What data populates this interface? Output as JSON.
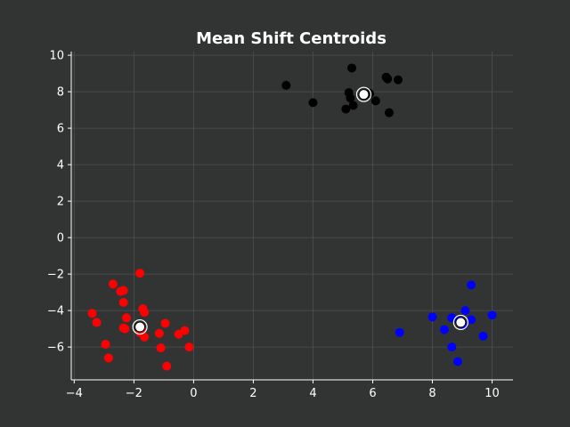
{
  "chart_data": {
    "type": "scatter",
    "title": "Mean Shift Centroids",
    "xlabel": "",
    "ylabel": "",
    "xlim": [
      -4.1,
      10.7
    ],
    "ylim": [
      -7.8,
      10.2
    ],
    "xticks": [
      -4,
      -2,
      0,
      2,
      4,
      6,
      8,
      10
    ],
    "yticks": [
      -6,
      -4,
      -2,
      0,
      2,
      4,
      6,
      8,
      10
    ],
    "grid": true,
    "background_color": "#323434",
    "series": [
      {
        "color": "#000000",
        "points": [
          [
            5.3,
            9.3
          ],
          [
            3.1,
            8.35
          ],
          [
            6.45,
            8.8
          ],
          [
            6.5,
            8.7
          ],
          [
            6.85,
            8.65
          ],
          [
            5.2,
            7.95
          ],
          [
            5.25,
            7.65
          ],
          [
            5.9,
            7.9
          ],
          [
            6.1,
            7.5
          ],
          [
            4.0,
            7.4
          ],
          [
            5.35,
            7.25
          ],
          [
            5.1,
            7.05
          ],
          [
            6.55,
            6.85
          ]
        ]
      },
      {
        "color": "#ff0000",
        "points": [
          [
            -1.8,
            -1.95
          ],
          [
            -2.7,
            -2.55
          ],
          [
            -2.45,
            -2.95
          ],
          [
            -2.35,
            -2.9
          ],
          [
            -2.35,
            -3.55
          ],
          [
            -3.4,
            -4.15
          ],
          [
            -1.7,
            -3.9
          ],
          [
            -1.65,
            -4.1
          ],
          [
            -2.25,
            -4.4
          ],
          [
            -3.25,
            -4.65
          ],
          [
            -0.95,
            -4.7
          ],
          [
            -2.3,
            -5.0
          ],
          [
            -2.35,
            -4.95
          ],
          [
            -1.75,
            -5.0
          ],
          [
            -1.8,
            -5.2
          ],
          [
            -1.15,
            -5.25
          ],
          [
            -1.65,
            -5.45
          ],
          [
            -0.3,
            -5.1
          ],
          [
            -0.5,
            -5.3
          ],
          [
            -2.95,
            -5.85
          ],
          [
            -1.1,
            -6.05
          ],
          [
            -0.15,
            -6.0
          ],
          [
            -2.85,
            -6.6
          ],
          [
            -0.9,
            -7.05
          ]
        ]
      },
      {
        "color": "#0000ff",
        "points": [
          [
            9.3,
            -2.6
          ],
          [
            9.1,
            -4.0
          ],
          [
            8.0,
            -4.35
          ],
          [
            8.65,
            -4.4
          ],
          [
            9.3,
            -4.5
          ],
          [
            10.0,
            -4.25
          ],
          [
            8.9,
            -4.55
          ],
          [
            9.05,
            -4.8
          ],
          [
            8.4,
            -5.05
          ],
          [
            6.9,
            -5.2
          ],
          [
            9.7,
            -5.4
          ],
          [
            8.65,
            -6.0
          ],
          [
            8.85,
            -6.8
          ]
        ]
      }
    ],
    "centroids": [
      [
        5.7,
        7.85
      ],
      [
        -1.8,
        -4.9
      ],
      [
        8.95,
        -4.65
      ]
    ],
    "centroid_style": {
      "fill": "#ffffff",
      "ring": "#000000"
    }
  }
}
